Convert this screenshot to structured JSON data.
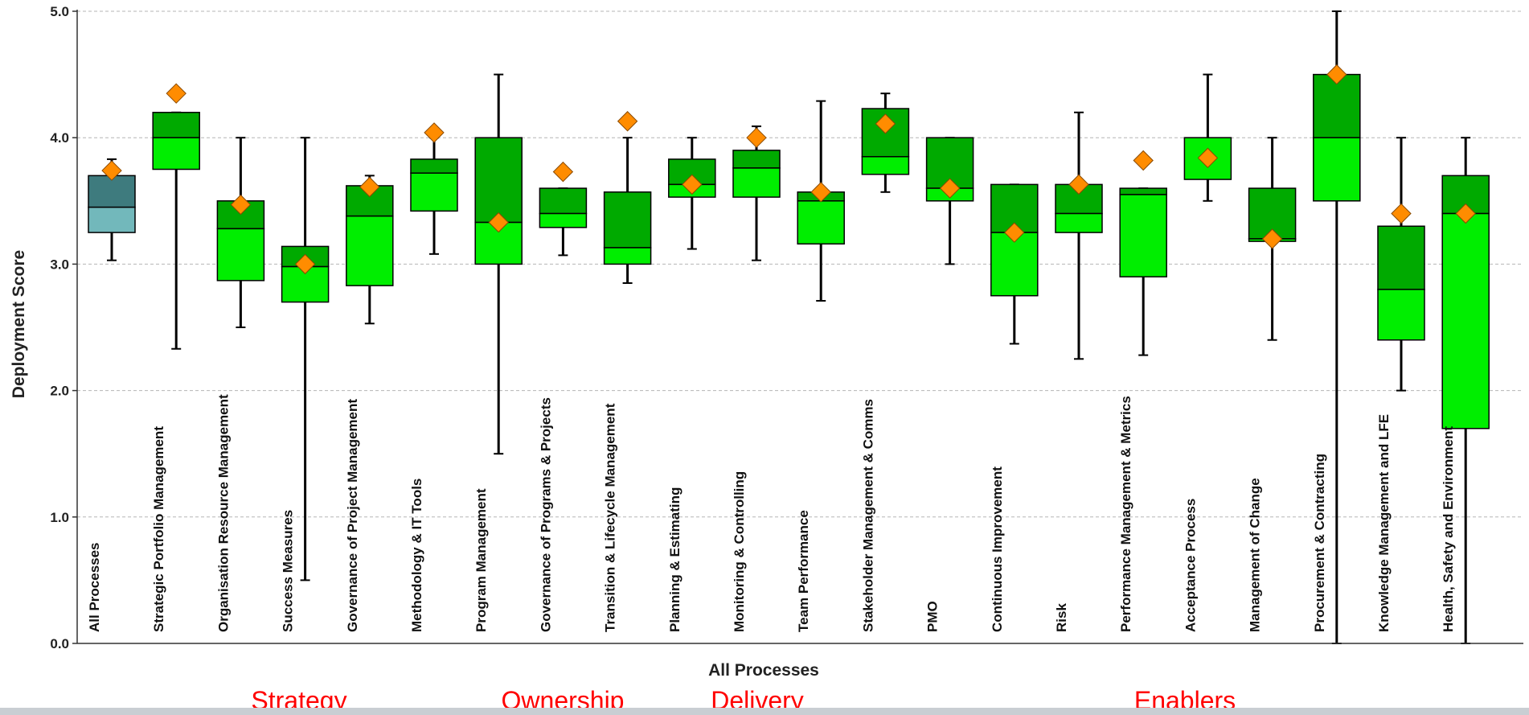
{
  "chart_data": {
    "type": "box",
    "title": "",
    "xlabel": "All Processes",
    "ylabel": "Deployment Score",
    "ylim": [
      0,
      5
    ],
    "y_ticks": [
      "0.0",
      "1.0",
      "2.0",
      "3.0",
      "4.0",
      "5.0"
    ],
    "grid": true,
    "legend": "none",
    "categories": [
      "All Processes",
      "Strategic Portfolio Management",
      "Organisation Resource Management",
      "Success Measures",
      "Governance of Project Management",
      "Methodology & IT Tools",
      "Program Management",
      "Governance of Programs & Projects",
      "Transition & Lifecycle Management",
      "Planning & Estimating",
      "Monitoring & Controlling",
      "Team Performance",
      "Stakeholder Management & Comms",
      "PMO",
      "Continuous Improvement",
      "Risk",
      "Performance Management & Metrics",
      "Acceptance Process",
      "Management of Change",
      "Procurement & Contracting",
      "Knowledge Management and LFE",
      "Health, Safety and Environment"
    ],
    "boxes": [
      {
        "min": 3.03,
        "q1": 3.25,
        "median": 3.45,
        "q3": 3.7,
        "max": 3.83,
        "mean": 3.74
      },
      {
        "min": 2.33,
        "q1": 3.75,
        "median": 4.0,
        "q3": 4.2,
        "max": 4.2,
        "mean": 4.35
      },
      {
        "min": 2.5,
        "q1": 2.87,
        "median": 3.28,
        "q3": 3.5,
        "max": 4.0,
        "mean": 3.47
      },
      {
        "min": 0.5,
        "q1": 2.7,
        "median": 2.98,
        "q3": 3.14,
        "max": 4.0,
        "mean": 3.0
      },
      {
        "min": 2.53,
        "q1": 2.83,
        "median": 3.38,
        "q3": 3.62,
        "max": 3.7,
        "mean": 3.61
      },
      {
        "min": 3.08,
        "q1": 3.42,
        "median": 3.72,
        "q3": 3.83,
        "max": 4.0,
        "mean": 4.04
      },
      {
        "min": 1.5,
        "q1": 3.0,
        "median": 3.33,
        "q3": 4.0,
        "max": 4.5,
        "mean": 3.33
      },
      {
        "min": 3.07,
        "q1": 3.29,
        "median": 3.4,
        "q3": 3.6,
        "max": 3.6,
        "mean": 3.73
      },
      {
        "min": 2.85,
        "q1": 3.0,
        "median": 3.13,
        "q3": 3.57,
        "max": 4.0,
        "mean": 4.13
      },
      {
        "min": 3.12,
        "q1": 3.53,
        "median": 3.63,
        "q3": 3.83,
        "max": 4.0,
        "mean": 3.63
      },
      {
        "min": 3.03,
        "q1": 3.53,
        "median": 3.76,
        "q3": 3.9,
        "max": 4.09,
        "mean": 4.0
      },
      {
        "min": 2.71,
        "q1": 3.16,
        "median": 3.5,
        "q3": 3.57,
        "max": 4.29,
        "mean": 3.57
      },
      {
        "min": 3.57,
        "q1": 3.71,
        "median": 3.85,
        "q3": 4.23,
        "max": 4.35,
        "mean": 4.11
      },
      {
        "min": 3.0,
        "q1": 3.5,
        "median": 3.6,
        "q3": 4.0,
        "max": 4.0,
        "mean": 3.6
      },
      {
        "min": 2.37,
        "q1": 2.75,
        "median": 3.25,
        "q3": 3.63,
        "max": 3.63,
        "mean": 3.25
      },
      {
        "min": 2.25,
        "q1": 3.25,
        "median": 3.4,
        "q3": 3.63,
        "max": 4.2,
        "mean": 3.63
      },
      {
        "min": 2.28,
        "q1": 2.9,
        "median": 3.55,
        "q3": 3.6,
        "max": 3.6,
        "mean": 3.82
      },
      {
        "min": 3.5,
        "q1": 3.67,
        "median": 4.0,
        "q3": 4.0,
        "max": 4.5,
        "mean": 3.84
      },
      {
        "min": 2.4,
        "q1": 3.18,
        "median": 3.2,
        "q3": 3.6,
        "max": 4.0,
        "mean": 3.2
      },
      {
        "min": 0.0,
        "q1": 3.5,
        "median": 4.0,
        "q3": 4.5,
        "max": 5.0,
        "mean": 4.5
      },
      {
        "min": 2.0,
        "q1": 2.4,
        "median": 2.8,
        "q3": 3.3,
        "max": 4.0,
        "mean": 3.4
      },
      {
        "min": 0.0,
        "q1": 1.7,
        "median": 3.4,
        "q3": 3.7,
        "max": 4.0,
        "mean": 3.4
      }
    ],
    "colors": {
      "upper_box": "#00aa00",
      "lower_box": "#00ee00",
      "overall_upper": "#3e7b7e",
      "overall_lower": "#72b8bb",
      "mean_marker": "#ff8c00",
      "group_label": "#ff0000"
    },
    "groups": [
      "Strategy",
      "Ownership",
      "Delivery",
      "Enablers"
    ]
  }
}
